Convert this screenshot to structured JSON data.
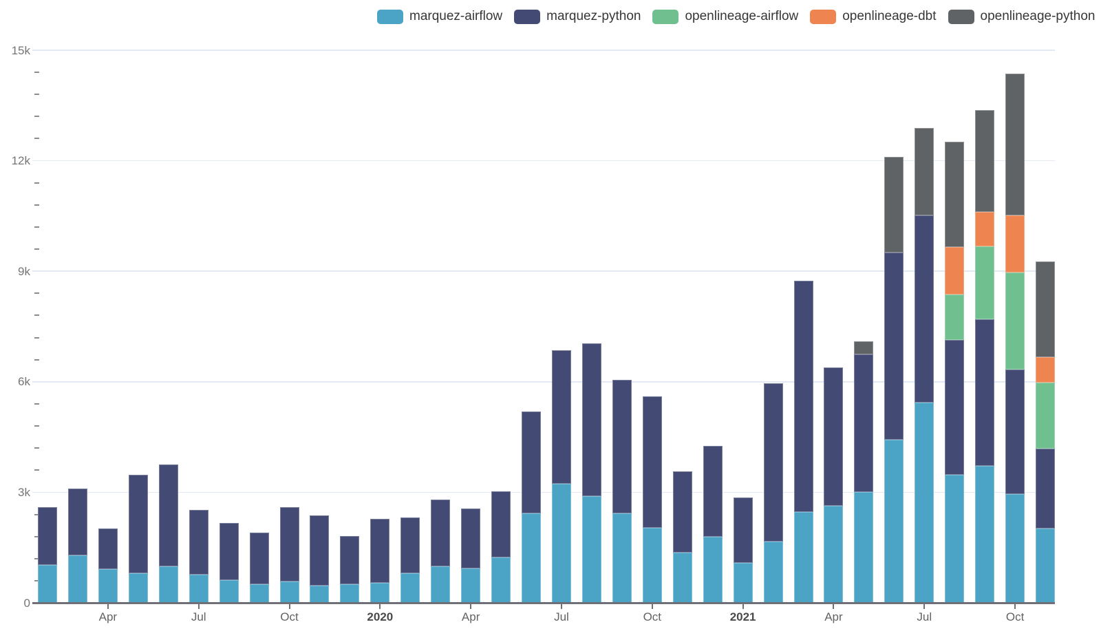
{
  "chart_data": {
    "type": "bar",
    "stacked": true,
    "legend_position": "top",
    "grid": true,
    "categories": [
      "Feb 2019",
      "Mar 2019",
      "Apr 2019",
      "May 2019",
      "Jun 2019",
      "Jul 2019",
      "Aug 2019",
      "Sep 2019",
      "Oct 2019",
      "Nov 2019",
      "Dec 2019",
      "Jan 2020",
      "Feb 2020",
      "Mar 2020",
      "Apr 2020",
      "May 2020",
      "Jun 2020",
      "Jul 2020",
      "Aug 2020",
      "Sep 2020",
      "Oct 2020",
      "Nov 2020",
      "Dec 2020",
      "Jan 2021",
      "Feb 2021",
      "Mar 2021",
      "Apr 2021",
      "May 2021",
      "Jun 2021",
      "Jul 2021",
      "Aug 2021",
      "Sep 2021",
      "Oct 2021",
      "Nov 2021"
    ],
    "series": [
      {
        "name": "marquez-airflow",
        "color": "#4BA4C5",
        "values": [
          1020,
          1295,
          920,
          810,
          985,
          760,
          625,
          505,
          580,
          475,
          510,
          540,
          795,
          990,
          925,
          1230,
          2420,
          3225,
          2900,
          2430,
          2030,
          1370,
          1790,
          1090,
          1670,
          2460,
          2630,
          3000,
          4430,
          5440,
          3480,
          3710,
          2955,
          2010
        ]
      },
      {
        "name": "marquez-python",
        "color": "#434A74",
        "values": [
          1580,
          1805,
          1100,
          2670,
          2765,
          1760,
          1540,
          1400,
          2010,
          1905,
          1305,
          1735,
          1530,
          1815,
          1625,
          1800,
          2780,
          3625,
          4150,
          3620,
          3570,
          2200,
          2460,
          1765,
          4280,
          6290,
          3750,
          3740,
          5070,
          5080,
          3650,
          3985,
          3375,
          2170
        ]
      },
      {
        "name": "openlineage-airflow",
        "color": "#70BF8E",
        "values": [
          0,
          0,
          0,
          0,
          0,
          0,
          0,
          0,
          0,
          0,
          0,
          0,
          0,
          0,
          0,
          0,
          0,
          0,
          0,
          0,
          0,
          0,
          0,
          0,
          0,
          0,
          0,
          0,
          0,
          0,
          1235,
          1980,
          2640,
          1800
        ]
      },
      {
        "name": "openlineage-dbt",
        "color": "#EE8450",
        "values": [
          0,
          0,
          0,
          0,
          0,
          0,
          0,
          0,
          0,
          0,
          0,
          0,
          0,
          0,
          0,
          0,
          0,
          0,
          0,
          0,
          0,
          0,
          0,
          0,
          0,
          0,
          0,
          0,
          0,
          0,
          1295,
          940,
          1540,
          685
        ]
      },
      {
        "name": "openlineage-python",
        "color": "#606366",
        "values": [
          0,
          0,
          0,
          0,
          0,
          0,
          0,
          0,
          0,
          0,
          0,
          0,
          0,
          0,
          0,
          0,
          0,
          0,
          0,
          0,
          0,
          0,
          0,
          0,
          0,
          0,
          0,
          360,
          2600,
          2360,
          2855,
          2765,
          3850,
          2605
        ]
      }
    ],
    "y_axis": {
      "min": 0,
      "max": 15000,
      "major_ticks": [
        0,
        3000,
        6000,
        9000,
        12000,
        15000
      ],
      "tick_labels": [
        "0",
        "3k",
        "6k",
        "9k",
        "12k",
        "15k"
      ],
      "minor_tick_interval": 600
    },
    "x_axis": {
      "tick_labels": [
        {
          "index": 2,
          "label": "Apr",
          "year": false
        },
        {
          "index": 5,
          "label": "Jul",
          "year": false
        },
        {
          "index": 8,
          "label": "Oct",
          "year": false
        },
        {
          "index": 11,
          "label": "2020",
          "year": true
        },
        {
          "index": 14,
          "label": "Apr",
          "year": false
        },
        {
          "index": 17,
          "label": "Jul",
          "year": false
        },
        {
          "index": 20,
          "label": "Oct",
          "year": false
        },
        {
          "index": 23,
          "label": "2021",
          "year": true
        },
        {
          "index": 26,
          "label": "Apr",
          "year": false
        },
        {
          "index": 29,
          "label": "Jul",
          "year": false
        },
        {
          "index": 32,
          "label": "Oct",
          "year": false
        }
      ]
    },
    "colors": {
      "gridline": "#E3E9F2",
      "axis_line": "#6F6F78",
      "y_label": "#757575",
      "x_month_label": "#636363",
      "x_year_label": "#4A4A4A",
      "legend_text": "#373737",
      "background": "#FFFFFF"
    }
  }
}
